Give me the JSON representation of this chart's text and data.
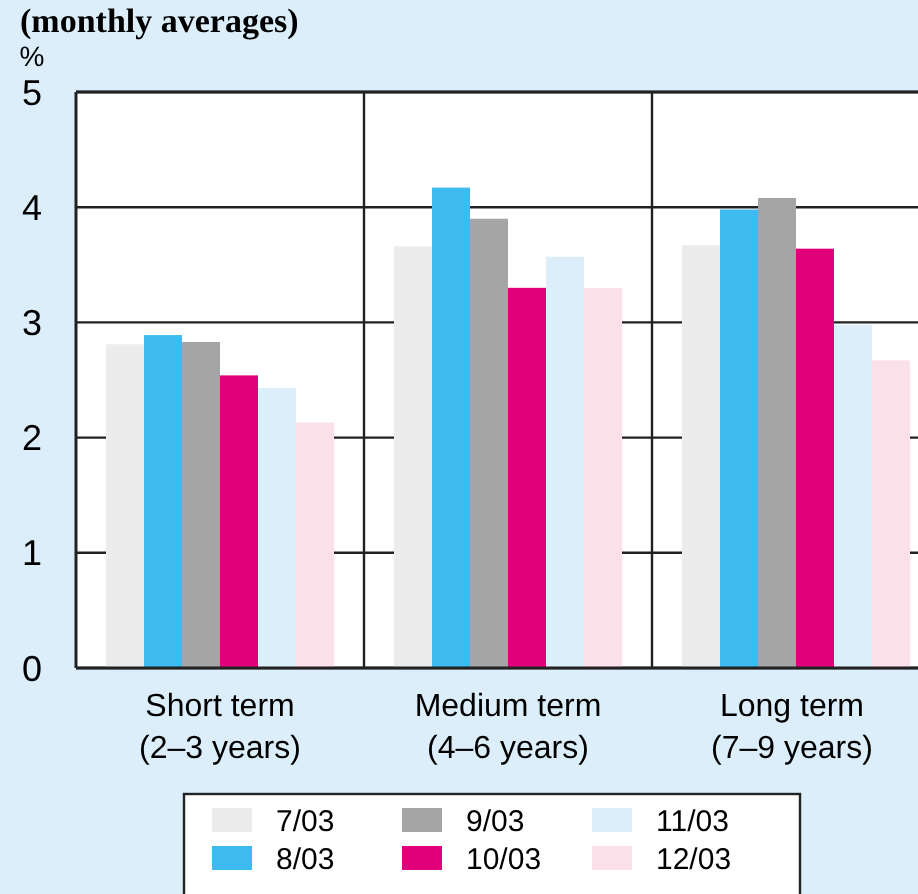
{
  "chart_data": {
    "type": "bar",
    "title": "(monthly averages)",
    "ylabel": "%",
    "categories": [
      "Short term\n(2–3 years)",
      "Medium term\n(4–6 years)",
      "Long term\n(7–9 years)"
    ],
    "series": [
      {
        "name": "7/03",
        "color": "#ececec",
        "values": [
          2.81,
          3.66,
          3.67
        ]
      },
      {
        "name": "8/03",
        "color": "#3dbaef",
        "values": [
          2.89,
          4.17,
          3.98
        ]
      },
      {
        "name": "9/03",
        "color": "#a5a5a5",
        "values": [
          2.83,
          3.9,
          4.08
        ]
      },
      {
        "name": "10/03",
        "color": "#e2007a",
        "values": [
          2.54,
          3.3,
          3.64
        ]
      },
      {
        "name": "11/03",
        "color": "#dbeefa",
        "values": [
          2.43,
          3.57,
          2.98
        ]
      },
      {
        "name": "12/03",
        "color": "#fbe0e9",
        "values": [
          2.13,
          3.3,
          2.67
        ]
      }
    ],
    "ylim": [
      0,
      5
    ],
    "yticks": [
      0,
      1,
      2,
      3,
      4,
      5
    ],
    "grid": true,
    "legend": "bottom"
  }
}
